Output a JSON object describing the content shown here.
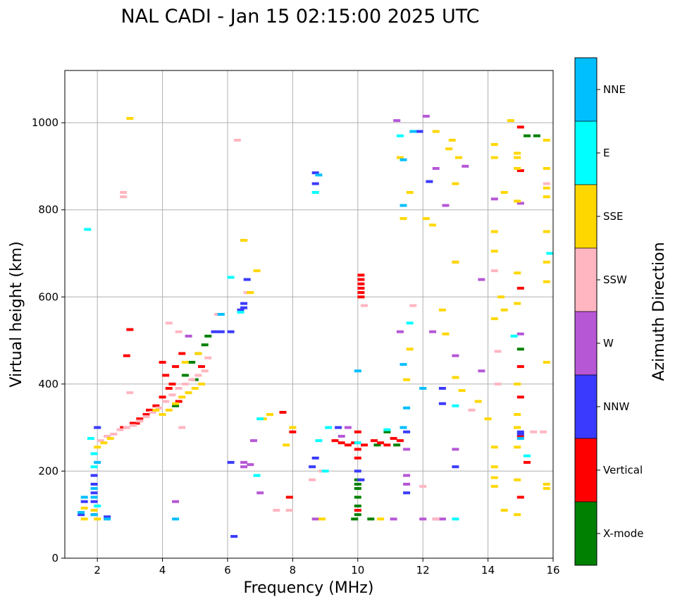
{
  "chart_data": {
    "type": "scatter",
    "title": "NAL CADI - Jan 15 02:15:00 2025 UTC",
    "xlabel": "Frequency (MHz)",
    "ylabel": "Virtual height (km)",
    "xlim": [
      1,
      16
    ],
    "ylim": [
      0,
      1120
    ],
    "xticks": [
      2,
      4,
      6,
      8,
      10,
      12,
      14,
      16
    ],
    "yticks": [
      0,
      200,
      400,
      600,
      800,
      1000
    ],
    "grid": true,
    "colorbar": {
      "label": "Azimuth Direction",
      "position": "right",
      "categories": [
        {
          "name": "X-mode",
          "color": "#008000"
        },
        {
          "name": "Vertical",
          "color": "#ff0000"
        },
        {
          "name": "NNW",
          "color": "#3a3aff"
        },
        {
          "name": "W",
          "color": "#b657d6"
        },
        {
          "name": "SSW",
          "color": "#ffb6c1"
        },
        {
          "name": "SSE",
          "color": "#ffd700"
        },
        {
          "name": "E",
          "color": "#00ffff"
        },
        {
          "name": "NNE",
          "color": "#00bfff"
        }
      ]
    },
    "series": [
      {
        "name": "X-mode",
        "points": [
          [
            4.9,
            450
          ],
          [
            5.1,
            470
          ],
          [
            5.3,
            490
          ],
          [
            5.0,
            410
          ],
          [
            4.7,
            420
          ],
          [
            5.4,
            510
          ],
          [
            10.0,
            180
          ],
          [
            10.0,
            170
          ],
          [
            10.0,
            160
          ],
          [
            10.0,
            140
          ],
          [
            10.0,
            120
          ],
          [
            10.0,
            100
          ],
          [
            10.6,
            260
          ],
          [
            10.9,
            290
          ],
          [
            11.2,
            260
          ],
          [
            15.0,
            480
          ],
          [
            15.2,
            970
          ],
          [
            15.5,
            970
          ],
          [
            9.9,
            90
          ],
          [
            10.4,
            90
          ],
          [
            4.4,
            350
          ]
        ]
      },
      {
        "name": "Vertical",
        "points": [
          [
            10.1,
            650
          ],
          [
            10.1,
            640
          ],
          [
            10.1,
            630
          ],
          [
            10.1,
            620
          ],
          [
            10.1,
            610
          ],
          [
            10.1,
            600
          ],
          [
            9.3,
            270
          ],
          [
            9.5,
            265
          ],
          [
            9.7,
            260
          ],
          [
            9.9,
            265
          ],
          [
            10.2,
            260
          ],
          [
            10.5,
            270
          ],
          [
            10.7,
            265
          ],
          [
            10.9,
            260
          ],
          [
            11.1,
            275
          ],
          [
            11.3,
            270
          ],
          [
            10.0,
            290
          ],
          [
            10.0,
            250
          ],
          [
            10.0,
            230
          ],
          [
            10.0,
            110
          ],
          [
            4.0,
            370
          ],
          [
            4.2,
            390
          ],
          [
            4.4,
            440
          ],
          [
            4.1,
            420
          ],
          [
            3.8,
            350
          ],
          [
            3.6,
            340
          ],
          [
            4.3,
            400
          ],
          [
            4.0,
            450
          ],
          [
            2.9,
            465
          ],
          [
            3.0,
            525
          ],
          [
            3.3,
            320
          ],
          [
            3.1,
            310
          ],
          [
            15.0,
            990
          ],
          [
            15.0,
            890
          ],
          [
            15.0,
            620
          ],
          [
            15.0,
            440
          ],
          [
            15.0,
            370
          ],
          [
            15.0,
            280
          ],
          [
            15.2,
            220
          ],
          [
            7.9,
            140
          ],
          [
            7.7,
            335
          ],
          [
            8.0,
            290
          ],
          [
            2.8,
            300
          ],
          [
            3.5,
            330
          ],
          [
            4.5,
            360
          ],
          [
            4.6,
            470
          ],
          [
            5.2,
            440
          ],
          [
            3.2,
            310
          ],
          [
            15.0,
            140
          ]
        ]
      },
      {
        "name": "NNW",
        "points": [
          [
            6.5,
            585
          ],
          [
            6.5,
            575
          ],
          [
            6.1,
            520
          ],
          [
            5.8,
            520
          ],
          [
            6.4,
            570
          ],
          [
            8.7,
            885
          ],
          [
            8.7,
            860
          ],
          [
            9.4,
            300
          ],
          [
            8.6,
            210
          ],
          [
            8.7,
            230
          ],
          [
            10.0,
            200
          ],
          [
            10.1,
            180
          ],
          [
            12.6,
            390
          ],
          [
            12.6,
            355
          ],
          [
            13.0,
            210
          ],
          [
            15.0,
            290
          ],
          [
            15.0,
            285
          ],
          [
            11.5,
            290
          ],
          [
            11.5,
            150
          ],
          [
            1.5,
            100
          ],
          [
            1.6,
            130
          ],
          [
            1.9,
            100
          ],
          [
            1.9,
            130
          ],
          [
            1.9,
            150
          ],
          [
            1.9,
            170
          ],
          [
            1.9,
            190
          ],
          [
            2.0,
            300
          ],
          [
            2.3,
            95
          ],
          [
            12.2,
            865
          ],
          [
            11.9,
            980
          ],
          [
            5.6,
            520
          ],
          [
            6.1,
            220
          ],
          [
            6.5,
            730
          ],
          [
            6.6,
            640
          ],
          [
            6.2,
            50
          ]
        ]
      },
      {
        "name": "W",
        "points": [
          [
            4.4,
            130
          ],
          [
            6.5,
            220
          ],
          [
            6.5,
            210
          ],
          [
            6.7,
            215
          ],
          [
            6.8,
            270
          ],
          [
            7.0,
            150
          ],
          [
            8.7,
            90
          ],
          [
            9.5,
            280
          ],
          [
            11.5,
            250
          ],
          [
            11.5,
            190
          ],
          [
            11.5,
            170
          ],
          [
            12.0,
            90
          ],
          [
            12.4,
            90
          ],
          [
            12.6,
            90
          ],
          [
            13.0,
            250
          ],
          [
            13.0,
            465
          ],
          [
            13.0,
            680
          ],
          [
            13.3,
            900
          ],
          [
            12.7,
            810
          ],
          [
            12.4,
            895
          ],
          [
            13.8,
            640
          ],
          [
            13.8,
            430
          ],
          [
            14.2,
            825
          ],
          [
            15.0,
            815
          ],
          [
            15.0,
            515
          ],
          [
            11.2,
            1005
          ],
          [
            12.1,
            1015
          ],
          [
            11.3,
            520
          ],
          [
            9.7,
            300
          ],
          [
            11.1,
            90
          ],
          [
            12.3,
            520
          ],
          [
            4.8,
            510
          ]
        ]
      },
      {
        "name": "SSW",
        "points": [
          [
            2.1,
            270
          ],
          [
            2.3,
            280
          ],
          [
            2.5,
            285
          ],
          [
            2.7,
            295
          ],
          [
            2.9,
            300
          ],
          [
            3.1,
            305
          ],
          [
            3.3,
            315
          ],
          [
            3.5,
            325
          ],
          [
            3.7,
            335
          ],
          [
            3.9,
            345
          ],
          [
            4.1,
            360
          ],
          [
            4.3,
            375
          ],
          [
            4.5,
            390
          ],
          [
            4.7,
            400
          ],
          [
            4.9,
            410
          ],
          [
            5.1,
            420
          ],
          [
            5.3,
            430
          ],
          [
            5.4,
            460
          ],
          [
            4.2,
            540
          ],
          [
            4.5,
            520
          ],
          [
            3.0,
            380
          ],
          [
            2.8,
            840
          ],
          [
            2.8,
            830
          ],
          [
            6.3,
            960
          ],
          [
            6.6,
            610
          ],
          [
            8.6,
            180
          ],
          [
            8.9,
            200
          ],
          [
            7.5,
            110
          ],
          [
            10.2,
            580
          ],
          [
            12.0,
            165
          ],
          [
            12.4,
            90
          ],
          [
            13.5,
            340
          ],
          [
            14.2,
            660
          ],
          [
            14.3,
            475
          ],
          [
            14.3,
            400
          ],
          [
            15.7,
            290
          ],
          [
            15.8,
            860
          ],
          [
            11.7,
            580
          ],
          [
            15.4,
            290
          ],
          [
            7.9,
            110
          ],
          [
            4.6,
            300
          ],
          [
            5.7,
            560
          ]
        ]
      },
      {
        "name": "SSE",
        "points": [
          [
            2.0,
            255
          ],
          [
            2.2,
            265
          ],
          [
            2.4,
            275
          ],
          [
            3.8,
            340
          ],
          [
            4.0,
            330
          ],
          [
            4.2,
            340
          ],
          [
            4.4,
            355
          ],
          [
            4.6,
            370
          ],
          [
            4.8,
            380
          ],
          [
            5.0,
            390
          ],
          [
            5.2,
            400
          ],
          [
            4.7,
            450
          ],
          [
            5.1,
            470
          ],
          [
            1.6,
            115
          ],
          [
            1.6,
            90
          ],
          [
            1.9,
            110
          ],
          [
            2.0,
            90
          ],
          [
            3.0,
            1010
          ],
          [
            6.5,
            730
          ],
          [
            6.7,
            610
          ],
          [
            6.9,
            660
          ],
          [
            7.1,
            320
          ],
          [
            7.3,
            330
          ],
          [
            7.8,
            260
          ],
          [
            8.0,
            300
          ],
          [
            8.9,
            90
          ],
          [
            10.7,
            90
          ],
          [
            11.5,
            410
          ],
          [
            11.6,
            480
          ],
          [
            12.0,
            390
          ],
          [
            12.1,
            780
          ],
          [
            12.3,
            765
          ],
          [
            12.4,
            980
          ],
          [
            12.8,
            940
          ],
          [
            12.9,
            960
          ],
          [
            13.0,
            860
          ],
          [
            13.1,
            920
          ],
          [
            12.7,
            515
          ],
          [
            13.0,
            415
          ],
          [
            13.2,
            385
          ],
          [
            13.0,
            680
          ],
          [
            13.7,
            360
          ],
          [
            14.2,
            950
          ],
          [
            14.2,
            920
          ],
          [
            14.2,
            750
          ],
          [
            14.2,
            705
          ],
          [
            14.2,
            550
          ],
          [
            14.2,
            255
          ],
          [
            14.2,
            210
          ],
          [
            14.2,
            185
          ],
          [
            14.2,
            165
          ],
          [
            14.5,
            570
          ],
          [
            14.5,
            840
          ],
          [
            14.5,
            110
          ],
          [
            14.7,
            1005
          ],
          [
            14.9,
            930
          ],
          [
            14.9,
            920
          ],
          [
            14.9,
            895
          ],
          [
            14.9,
            820
          ],
          [
            14.9,
            655
          ],
          [
            14.9,
            585
          ],
          [
            14.9,
            400
          ],
          [
            14.9,
            330
          ],
          [
            14.9,
            300
          ],
          [
            14.9,
            255
          ],
          [
            14.9,
            180
          ],
          [
            14.9,
            100
          ],
          [
            15.8,
            960
          ],
          [
            15.8,
            895
          ],
          [
            15.8,
            850
          ],
          [
            15.8,
            830
          ],
          [
            15.8,
            750
          ],
          [
            15.8,
            680
          ],
          [
            15.8,
            635
          ],
          [
            15.8,
            450
          ],
          [
            15.8,
            170
          ],
          [
            15.8,
            160
          ],
          [
            12.6,
            570
          ],
          [
            11.3,
            920
          ],
          [
            11.6,
            840
          ],
          [
            11.4,
            780
          ],
          [
            14.0,
            320
          ],
          [
            14.4,
            600
          ]
        ]
      },
      {
        "name": "E",
        "points": [
          [
            1.7,
            755
          ],
          [
            1.8,
            275
          ],
          [
            1.9,
            210
          ],
          [
            1.9,
            240
          ],
          [
            2.0,
            120
          ],
          [
            6.1,
            645
          ],
          [
            6.4,
            565
          ],
          [
            6.9,
            190
          ],
          [
            7.0,
            320
          ],
          [
            8.7,
            840
          ],
          [
            9.1,
            300
          ],
          [
            9.0,
            200
          ],
          [
            11.6,
            540
          ],
          [
            11.3,
            970
          ],
          [
            13.0,
            350
          ],
          [
            13.0,
            90
          ],
          [
            15.2,
            235
          ],
          [
            15.9,
            700
          ],
          [
            8.8,
            270
          ],
          [
            10.0,
            265
          ],
          [
            14.8,
            510
          ],
          [
            10.9,
            295
          ]
        ]
      },
      {
        "name": "NNE",
        "points": [
          [
            1.5,
            105
          ],
          [
            1.6,
            140
          ],
          [
            1.9,
            100
          ],
          [
            1.9,
            140
          ],
          [
            1.9,
            160
          ],
          [
            2.0,
            220
          ],
          [
            2.3,
            90
          ],
          [
            4.4,
            90
          ],
          [
            5.8,
            560
          ],
          [
            10.0,
            430
          ],
          [
            11.4,
            915
          ],
          [
            11.4,
            445
          ],
          [
            11.5,
            345
          ],
          [
            12.0,
            390
          ],
          [
            11.7,
            980
          ],
          [
            11.4,
            810
          ],
          [
            15.0,
            275
          ],
          [
            8.8,
            880
          ],
          [
            11.4,
            300
          ]
        ]
      }
    ]
  }
}
